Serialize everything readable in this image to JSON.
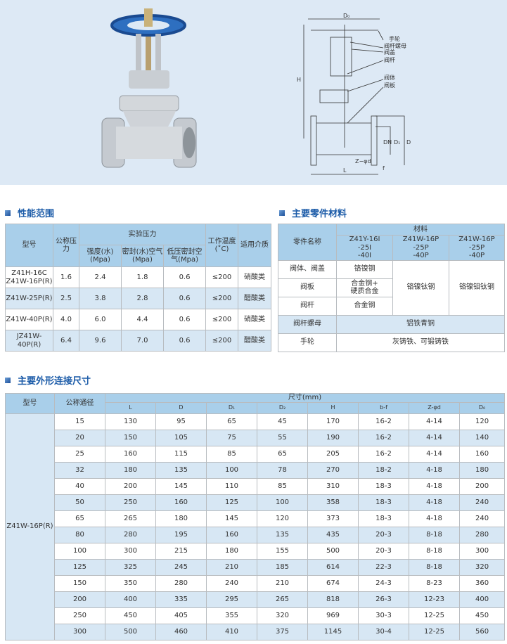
{
  "diagram": {
    "labels": [
      "手轮",
      "阀杆螺母",
      "阀盖",
      "阀杆",
      "阀体",
      "闸板"
    ],
    "dims": {
      "D0": "D₀",
      "H": "H",
      "L": "L",
      "DN": "DN",
      "D1": "D₁",
      "D": "D",
      "Zd": "Z−φd",
      "f": "f"
    }
  },
  "sections": {
    "performance": "性能范围",
    "materials": "主要零件材料",
    "dimensions": "主要外形连接尺寸"
  },
  "perf": {
    "headers": {
      "model": "型号",
      "pn": "公称压力",
      "test": "实验压力",
      "strength": "强度(水)(Mpa)",
      "seal": "密封(水)空气(Mpa)",
      "lowseal": "低压密封空气(Mpa)",
      "temp": "工作温度(˚C)",
      "medium": "适用介质"
    },
    "rows": [
      [
        "Z41H-16C\nZ41W-16P(R)",
        "1.6",
        "2.4",
        "1.8",
        "0.6",
        "≤200",
        "硝酸类"
      ],
      [
        "Z41W-25P(R)",
        "2.5",
        "3.8",
        "2.8",
        "0.6",
        "≤200",
        "醋酸类"
      ],
      [
        "Z41W-40P(R)",
        "4.0",
        "6.0",
        "4.4",
        "0.6",
        "≤200",
        "硝酸类"
      ],
      [
        "JZ41W-40P(R)",
        "6.4",
        "9.6",
        "7.0",
        "0.6",
        "≤200",
        "醋酸类"
      ]
    ]
  },
  "materials": {
    "headers": {
      "part": "零件名称",
      "material": "材料",
      "c1": "Z41Y-16I\n-25I\n-40I",
      "c2": "Z41W-16P\n-25P\n-40P",
      "c3": "Z41W-16P\n-25P\n-40P"
    },
    "rows": [
      [
        "阀体、阀盖",
        "铬镍钢"
      ],
      [
        "阀板",
        "合金钢+\n硬质合金"
      ],
      [
        "阀杆",
        "合金钢"
      ]
    ],
    "merged_c2": "铬镍钛钢",
    "merged_c3": "铬镍钼钛钢",
    "nut": [
      "阀杆螺母",
      "铝铁青铜"
    ],
    "wheel": [
      "手轮",
      "灰铸铁、可锻铸铁"
    ]
  },
  "dims": {
    "headers": {
      "model": "型号",
      "dn": "公称通径",
      "size": "尺寸(mm)",
      "cols": [
        "L",
        "D",
        "D₁",
        "D₂",
        "H",
        "b-f",
        "Z-φd",
        "D₀"
      ]
    },
    "model": "Z41W-16P(R)",
    "rows": [
      [
        "15",
        "130",
        "95",
        "65",
        "45",
        "170",
        "16-2",
        "4-14",
        "120"
      ],
      [
        "20",
        "150",
        "105",
        "75",
        "55",
        "190",
        "16-2",
        "4-14",
        "140"
      ],
      [
        "25",
        "160",
        "115",
        "85",
        "65",
        "205",
        "16-2",
        "4-14",
        "160"
      ],
      [
        "32",
        "180",
        "135",
        "100",
        "78",
        "270",
        "18-2",
        "4-18",
        "180"
      ],
      [
        "40",
        "200",
        "145",
        "110",
        "85",
        "310",
        "18-3",
        "4-18",
        "200"
      ],
      [
        "50",
        "250",
        "160",
        "125",
        "100",
        "358",
        "18-3",
        "4-18",
        "240"
      ],
      [
        "65",
        "265",
        "180",
        "145",
        "120",
        "373",
        "18-3",
        "4-18",
        "240"
      ],
      [
        "80",
        "280",
        "195",
        "160",
        "135",
        "435",
        "20-3",
        "8-18",
        "280"
      ],
      [
        "100",
        "300",
        "215",
        "180",
        "155",
        "500",
        "20-3",
        "8-18",
        "300"
      ],
      [
        "125",
        "325",
        "245",
        "210",
        "185",
        "614",
        "22-3",
        "8-18",
        "320"
      ],
      [
        "150",
        "350",
        "280",
        "240",
        "210",
        "674",
        "24-3",
        "8-23",
        "360"
      ],
      [
        "200",
        "400",
        "335",
        "295",
        "265",
        "818",
        "26-3",
        "12-23",
        "400"
      ],
      [
        "250",
        "450",
        "405",
        "355",
        "320",
        "969",
        "30-3",
        "12-25",
        "450"
      ],
      [
        "300",
        "500",
        "460",
        "410",
        "375",
        "1145",
        "30-4",
        "12-25",
        "560"
      ]
    ]
  }
}
